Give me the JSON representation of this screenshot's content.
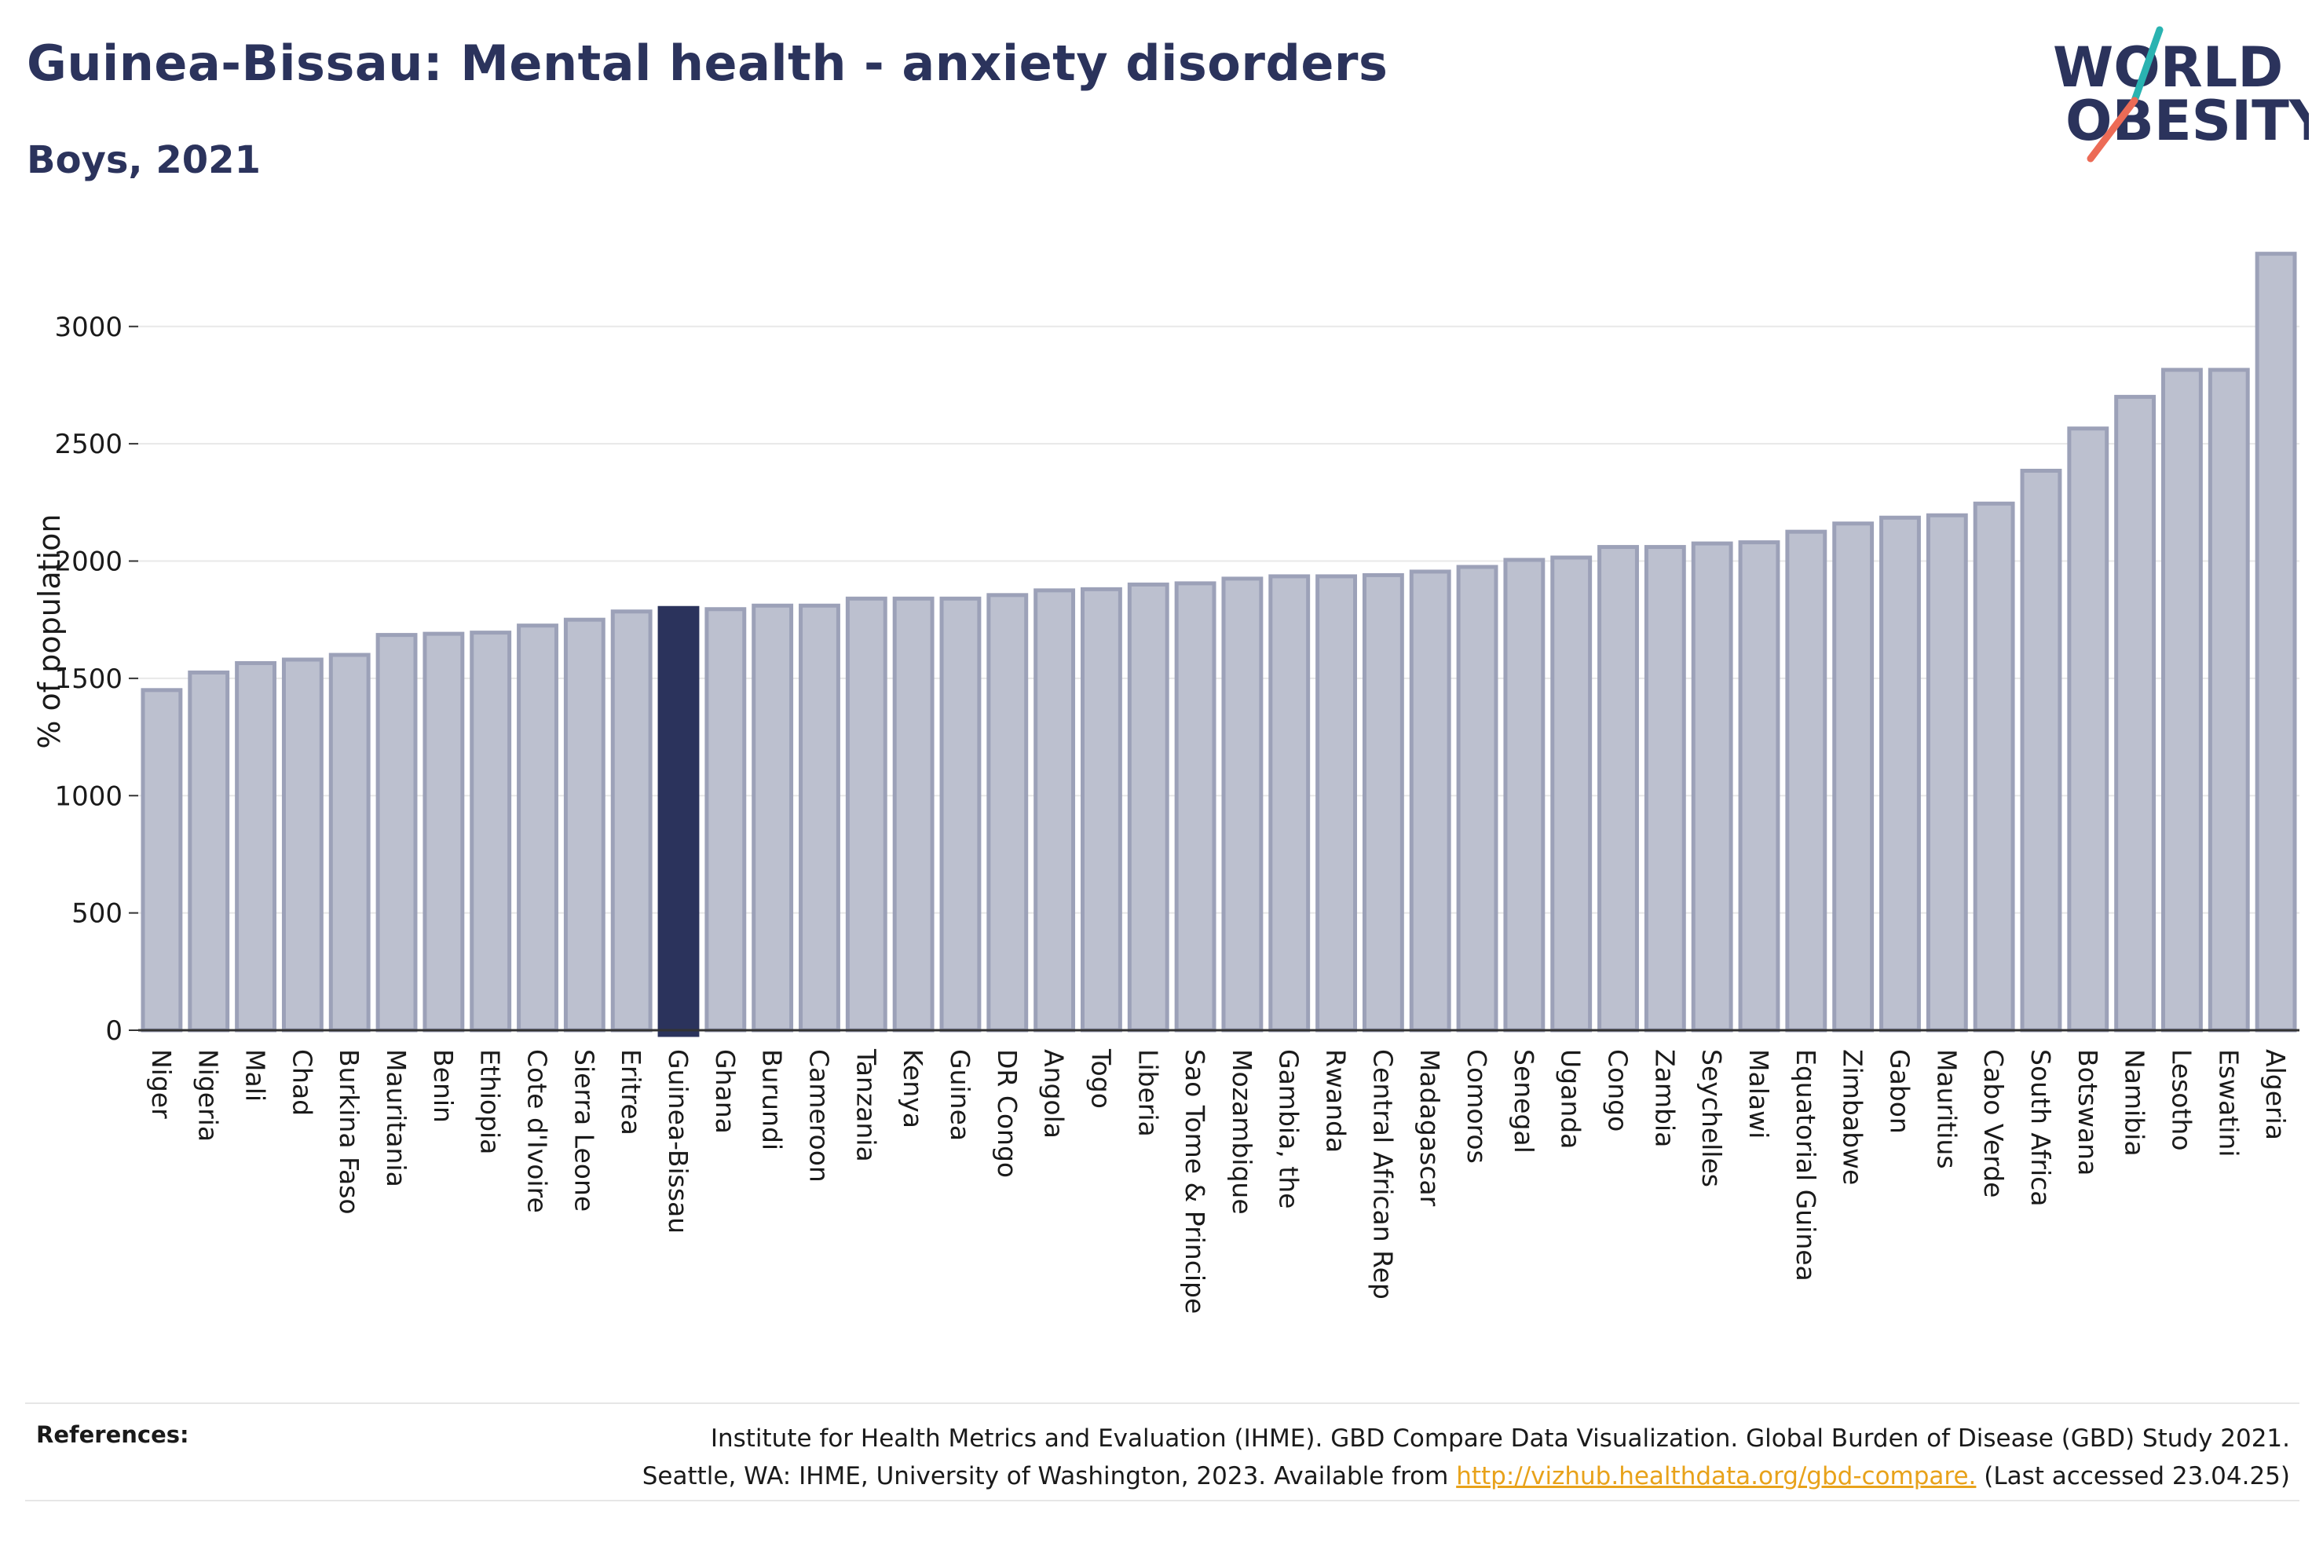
{
  "header": {
    "title": "Guinea-Bissau: Mental health - anxiety disorders",
    "subtitle": "Boys, 2021"
  },
  "logo": {
    "line1": "WORLD",
    "line2": "OBESITY"
  },
  "colors": {
    "bar": "#bcc0cf",
    "bar_outline": "#9ca1b8",
    "highlight": "#2b335c",
    "axis": "#333333",
    "grid": "#e8e8e8"
  },
  "references": {
    "label": "References:",
    "line1": "Institute for Health Metrics and Evaluation (IHME). GBD Compare Data Visualization. Global Burden of Disease (GBD) Study 2021.",
    "line2_prefix": "Seattle, WA: IHME, University of Washington, 2023. Available from ",
    "link": "http://vizhub.healthdata.org/gbd-compare.",
    "line2_suffix": " (Last accessed 23.04.25)"
  },
  "chart_data": {
    "type": "bar",
    "title": "Guinea-Bissau: Mental health - anxiety disorders",
    "subtitle": "Boys, 2021",
    "xlabel": "",
    "ylabel": "% of population",
    "ylim": [
      0,
      3300
    ],
    "yticks": [
      0,
      500,
      1000,
      1500,
      2000,
      2500,
      3000
    ],
    "grid": true,
    "highlight": "Guinea-Bissau",
    "categories": [
      "Niger",
      "Nigeria",
      "Mali",
      "Chad",
      "Burkina Faso",
      "Mauritania",
      "Benin",
      "Ethiopia",
      "Cote d'Ivoire",
      "Sierra Leone",
      "Eritrea",
      "Guinea-Bissau",
      "Ghana",
      "Burundi",
      "Cameroon",
      "Tanzania",
      "Kenya",
      "Guinea",
      "DR Congo",
      "Angola",
      "Togo",
      "Liberia",
      "Sao Tome & Principe",
      "Mozambique",
      "Gambia, the",
      "Rwanda",
      "Central African Rep",
      "Madagascar",
      "Comoros",
      "Senegal",
      "Uganda",
      "Congo",
      "Zambia",
      "Seychelles",
      "Malawi",
      "Equatorial Guinea",
      "Zimbabwe",
      "Gabon",
      "Mauritius",
      "Cabo Verde",
      "South Africa",
      "Botswana",
      "Namibia",
      "Lesotho",
      "Eswatini",
      "Algeria"
    ],
    "values": [
      1450,
      1525,
      1565,
      1580,
      1600,
      1685,
      1690,
      1695,
      1725,
      1750,
      1785,
      1800,
      1795,
      1810,
      1810,
      1840,
      1840,
      1840,
      1855,
      1875,
      1880,
      1900,
      1905,
      1925,
      1935,
      1935,
      1940,
      1955,
      1975,
      2005,
      2015,
      2060,
      2060,
      2075,
      2080,
      2125,
      2160,
      2185,
      2195,
      2245,
      2385,
      2565,
      2700,
      2815,
      2815,
      3310
    ]
  }
}
